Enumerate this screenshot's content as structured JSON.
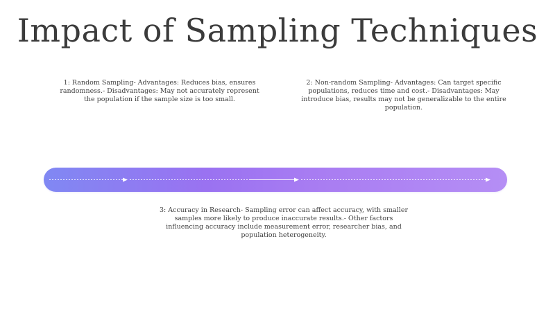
{
  "title": "Impact of Sampling Techniques",
  "points": [
    {
      "text": "1: Random Sampling- Advantages: Reduces bias, ensures randomness.- Disadvantages: May not accurately represent the population if the sample size is too small."
    },
    {
      "text": "2: Non-random Sampling- Advantages: Can target specific populations, reduces time and cost.- Disadvantages: May introduce bias, results may not be generalizable to the entire population."
    },
    {
      "text": "3: Accuracy in Research- Sampling error can affect accuracy, with smaller samples more likely to produce inaccurate results.- Other factors influencing accuracy include measurement error, researcher bias, and population heterogeneity."
    }
  ],
  "colors": {
    "timeline_start": "#8088f3",
    "timeline_mid": "#9a72f1",
    "timeline_end": "#b58ef5",
    "text": "#3f3f3f",
    "title": "#3b3b3b"
  },
  "icons": [
    "arrow-right-icon"
  ]
}
